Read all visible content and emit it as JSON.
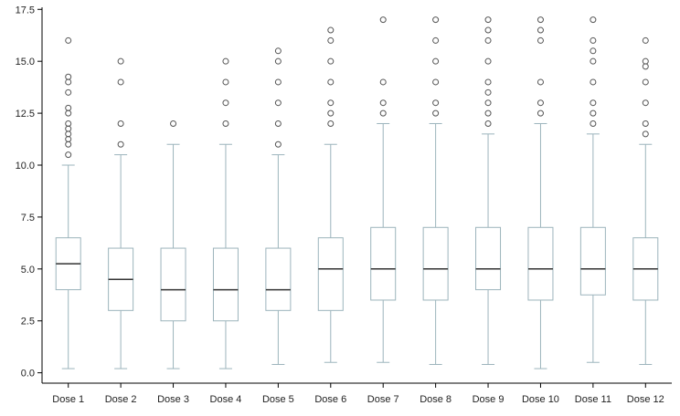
{
  "chart_data": {
    "type": "box",
    "title": "",
    "xlabel": "",
    "ylabel": "",
    "ylim": [
      -0.5,
      17.6
    ],
    "yticks": [
      0.0,
      2.5,
      5.0,
      7.5,
      10.0,
      12.5,
      15.0,
      17.5
    ],
    "ytick_labels": [
      "0.0",
      "2.5",
      "5.0",
      "7.5",
      "10.0",
      "12.5",
      "15.0",
      "17.5"
    ],
    "grid": false,
    "box_color": "#9cb4bc",
    "median_color": "#333333",
    "categories": [
      "Dose 1",
      "Dose 2",
      "Dose 3",
      "Dose 4",
      "Dose 5",
      "Dose 6",
      "Dose 7",
      "Dose 8",
      "Dose 9",
      "Dose 10",
      "Dose 11",
      "Dose 12"
    ],
    "boxes": [
      {
        "min": 0.2,
        "q1": 4.0,
        "median": 5.25,
        "q3": 6.5,
        "max": 10.0,
        "outliers": [
          10.5,
          11.0,
          11.25,
          11.5,
          11.75,
          12.0,
          12.5,
          12.75,
          13.5,
          14.0,
          14.25,
          16.0
        ]
      },
      {
        "min": 0.2,
        "q1": 3.0,
        "median": 4.5,
        "q3": 6.0,
        "max": 10.5,
        "outliers": [
          11.0,
          12.0,
          14.0,
          15.0
        ]
      },
      {
        "min": 0.2,
        "q1": 2.5,
        "median": 4.0,
        "q3": 6.0,
        "max": 11.0,
        "outliers": [
          12.0
        ]
      },
      {
        "min": 0.2,
        "q1": 2.5,
        "median": 4.0,
        "q3": 6.0,
        "max": 11.0,
        "outliers": [
          12.0,
          13.0,
          14.0,
          15.0
        ]
      },
      {
        "min": 0.4,
        "q1": 3.0,
        "median": 4.0,
        "q3": 6.0,
        "max": 10.5,
        "outliers": [
          11.0,
          12.0,
          13.0,
          14.0,
          15.0,
          15.5
        ]
      },
      {
        "min": 0.5,
        "q1": 3.0,
        "median": 5.0,
        "q3": 6.5,
        "max": 11.0,
        "outliers": [
          12.0,
          12.5,
          13.0,
          14.0,
          15.0,
          16.0,
          16.5
        ]
      },
      {
        "min": 0.5,
        "q1": 3.5,
        "median": 5.0,
        "q3": 7.0,
        "max": 12.0,
        "outliers": [
          12.5,
          13.0,
          14.0,
          17.0
        ]
      },
      {
        "min": 0.4,
        "q1": 3.5,
        "median": 5.0,
        "q3": 7.0,
        "max": 12.0,
        "outliers": [
          12.5,
          13.0,
          14.0,
          15.0,
          16.0,
          17.0
        ]
      },
      {
        "min": 0.4,
        "q1": 4.0,
        "median": 5.0,
        "q3": 7.0,
        "max": 11.5,
        "outliers": [
          12.0,
          12.5,
          13.0,
          13.5,
          14.0,
          15.0,
          16.0,
          16.5,
          17.0
        ]
      },
      {
        "min": 0.2,
        "q1": 3.5,
        "median": 5.0,
        "q3": 7.0,
        "max": 12.0,
        "outliers": [
          12.5,
          13.0,
          14.0,
          16.0,
          16.5,
          17.0
        ]
      },
      {
        "min": 0.5,
        "q1": 3.75,
        "median": 5.0,
        "q3": 7.0,
        "max": 11.5,
        "outliers": [
          12.0,
          12.5,
          13.0,
          14.0,
          15.0,
          15.5,
          16.0,
          17.0
        ]
      },
      {
        "min": 0.4,
        "q1": 3.5,
        "median": 5.0,
        "q3": 6.5,
        "max": 11.0,
        "outliers": [
          11.5,
          12.0,
          13.0,
          14.0,
          14.75,
          15.0,
          16.0
        ]
      }
    ]
  }
}
